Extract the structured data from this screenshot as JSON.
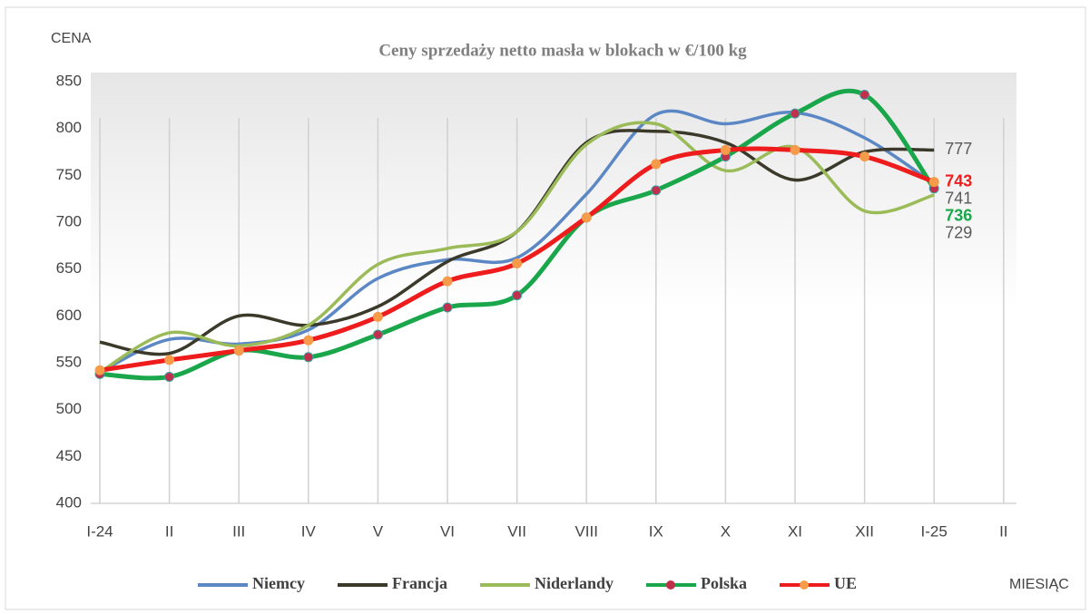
{
  "chart_data": {
    "type": "line",
    "title": "Ceny sprzedaży  netto masła w blokach w €/100 kg",
    "y_axis_label": "CENA",
    "x_axis_label": "MIESIĄC",
    "categories": [
      "I-24",
      "II",
      "III",
      "IV",
      "V",
      "VI",
      "VII",
      "VIII",
      "IX",
      "X",
      "XI",
      "XII",
      "I-25",
      "II"
    ],
    "ylim": [
      400,
      850
    ],
    "yticks": [
      400,
      450,
      500,
      550,
      600,
      650,
      700,
      750,
      800,
      850
    ],
    "grid": true,
    "legend": "bottom",
    "series": [
      {
        "name": "Niemcy",
        "color": "#5b87c5",
        "label_color": "#595959",
        "values": [
          540,
          575,
          570,
          585,
          640,
          660,
          662,
          730,
          815,
          805,
          817,
          790,
          741,
          null
        ]
      },
      {
        "name": "Francja",
        "color": "#3b3a2a",
        "label_color": "#595959",
        "values": [
          572,
          560,
          600,
          590,
          610,
          658,
          690,
          785,
          797,
          785,
          745,
          775,
          777,
          null
        ]
      },
      {
        "name": "Niderlandy",
        "color": "#9bbb59",
        "label_color": "#595959",
        "values": [
          540,
          582,
          568,
          590,
          655,
          672,
          690,
          783,
          805,
          755,
          780,
          712,
          729,
          null
        ]
      },
      {
        "name": "Polska",
        "color": "#1aa64a",
        "label_color": "#1aa64a",
        "marker": "#c0304a",
        "values": [
          538,
          535,
          563,
          556,
          580,
          609,
          622,
          705,
          734,
          770,
          816,
          836,
          736,
          null
        ]
      },
      {
        "name": "UE",
        "color": "#ee1c1c",
        "label_color": "#ee1c1c",
        "marker": "#f59b4a",
        "values": [
          542,
          553,
          563,
          574,
          599,
          637,
          656,
          705,
          762,
          777,
          777,
          770,
          743,
          null
        ]
      }
    ]
  }
}
